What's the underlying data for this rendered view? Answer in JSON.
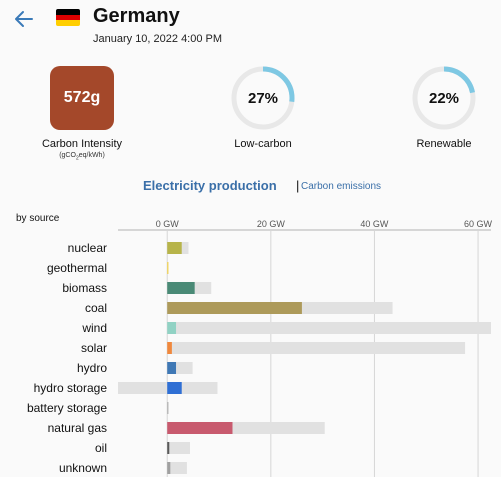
{
  "header": {
    "country": "Germany",
    "datetime": "January 10, 2022 4:00 PM",
    "flag_colors": [
      "#000000",
      "#dd0000",
      "#ffce00"
    ]
  },
  "metrics": {
    "carbon_intensity": {
      "value": "572g",
      "label": "Carbon Intensity",
      "unit": "(gCO",
      "unit_sub": "2",
      "unit_tail": "eq/kWh)",
      "color": "#a4482a"
    },
    "low_carbon": {
      "value": "27%",
      "fraction": 0.27,
      "label": "Low-carbon"
    },
    "renewable": {
      "value": "22%",
      "fraction": 0.22,
      "label": "Renewable"
    },
    "gauge_color": "#7ec8e3",
    "gauge_track": "#e8e8e8"
  },
  "tabs": {
    "active": "Electricity production",
    "separator": "|",
    "other": "Carbon emissions"
  },
  "chart_data": {
    "type": "bar",
    "section_label": "by source",
    "x_ticks": [
      {
        "value": 0,
        "label": "0 GW"
      },
      {
        "value": 20,
        "label": "20 GW"
      },
      {
        "value": 40,
        "label": "40 GW"
      },
      {
        "value": 60,
        "label": "60 GW"
      }
    ],
    "xlim": [
      -9.5,
      62.5
    ],
    "categories": [
      "nuclear",
      "geothermal",
      "biomass",
      "coal",
      "wind",
      "solar",
      "hydro",
      "hydro storage",
      "battery storage",
      "natural gas",
      "oil",
      "unknown"
    ],
    "production": [
      2.8,
      0.2,
      5.3,
      26.0,
      1.7,
      0.9,
      1.7,
      2.8,
      0.1,
      12.6,
      0.4,
      0.6
    ],
    "capacity_min": [
      0,
      0,
      0,
      0,
      0,
      0,
      0,
      -9.5,
      0,
      0,
      0,
      0
    ],
    "capacity_max": [
      4.1,
      0.2,
      8.5,
      43.5,
      62.5,
      57.5,
      4.9,
      9.7,
      0.2,
      30.4,
      4.4,
      3.8
    ],
    "colors": [
      "#b7b44a",
      "#f2d14c",
      "#4a8a76",
      "#ad9a5a",
      "#91d2c4",
      "#f0883d",
      "#3f78b5",
      "#2f6fd4",
      "#b0b0b0",
      "#c85a6e",
      "#5a5a5a",
      "#a0a0a0"
    ],
    "capacity_color": "#e1e1e1"
  }
}
